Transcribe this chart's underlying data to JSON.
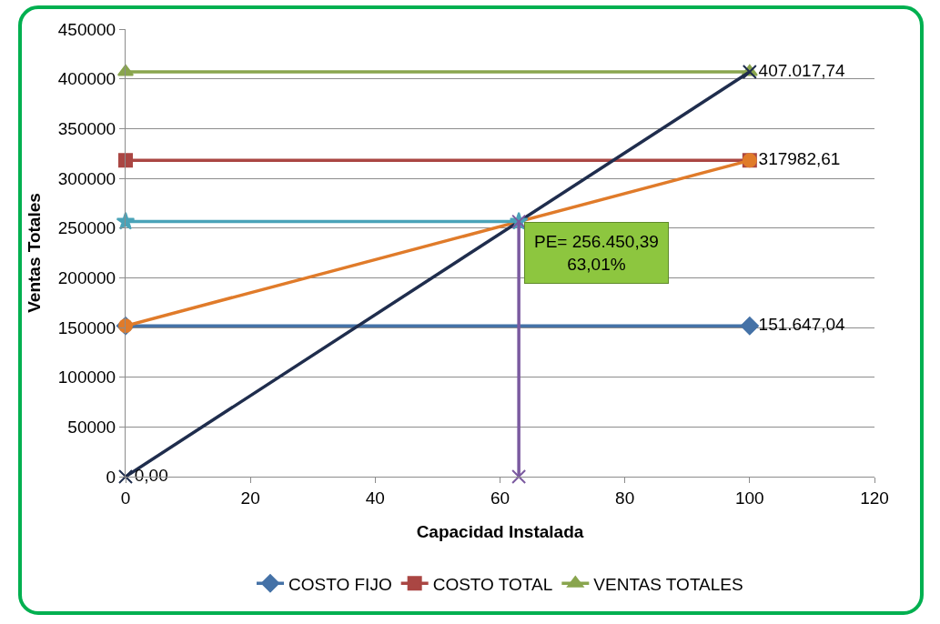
{
  "chart_data": {
    "type": "line",
    "xlabel": "Capacidad Instalada",
    "ylabel": "Ventas Totales",
    "xlim": [
      0,
      120
    ],
    "xticks": [
      0,
      20,
      40,
      60,
      80,
      100,
      120
    ],
    "ylim": [
      0,
      450000
    ],
    "yticks": [
      0,
      50000,
      100000,
      150000,
      200000,
      250000,
      300000,
      350000,
      400000,
      450000
    ],
    "grid": "y",
    "legend": "bottom",
    "line_style": "solid",
    "series": [
      {
        "name": "COSTO FIJO",
        "color": "#4572a7",
        "marker": "diamond",
        "x": [
          0,
          100
        ],
        "values": [
          151647.04,
          151647.04
        ],
        "value_labels": [
          null,
          "151.647,04"
        ]
      },
      {
        "name": "COSTO TOTAL",
        "color": "#aa4643",
        "marker": "square",
        "x": [
          0,
          100
        ],
        "values": [
          317982.61,
          317982.61
        ],
        "value_labels": [
          null,
          "317982,61"
        ]
      },
      {
        "name": "VENTAS TOTALES",
        "color": "#89a54e",
        "marker": "triangle",
        "x": [
          0,
          100
        ],
        "values": [
          407017.74,
          407017.74
        ],
        "value_labels": [
          null,
          "407.017,74"
        ]
      },
      {
        "color": "#e07b2a",
        "marker": "circle",
        "x": [
          0,
          100
        ],
        "values": [
          151647.04,
          317982.61
        ]
      },
      {
        "color": "#1f2d4d",
        "marker": "cross",
        "x": [
          0,
          100
        ],
        "values": [
          0,
          407017.74
        ],
        "value_labels": [
          "0,00",
          null
        ]
      },
      {
        "color": "#4aa3b8",
        "marker": "star",
        "x": [
          0,
          63.01
        ],
        "values": [
          256450.39,
          256450.39
        ]
      },
      {
        "color": "#7b5aa0",
        "marker": "cross",
        "x": [
          63.01,
          63.01
        ],
        "values": [
          256450.39,
          0
        ]
      }
    ],
    "annotations": [
      {
        "text": "PE= 256.450,39\n63,01%",
        "x": 63.01,
        "y": 256450.39
      }
    ]
  }
}
